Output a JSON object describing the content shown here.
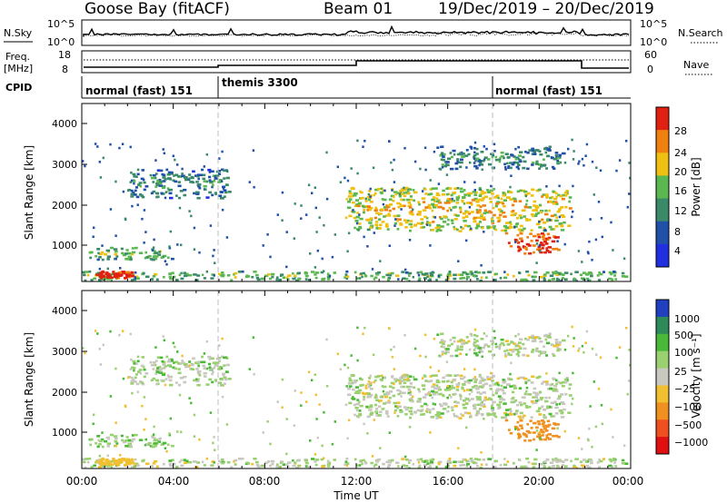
{
  "header": {
    "station": "Goose Bay (fitACF)",
    "beam": "Beam 01",
    "dates": "19/Dec/2019 – 20/Dec/2019"
  },
  "summary_panels": {
    "nsky_label": "N.Sky",
    "nsky_ticks": [
      "10^5",
      "10^0"
    ],
    "nsearch_label": "N.Search",
    "nsearch_ticks": [
      "10^5",
      "10^0"
    ],
    "freq_label_line1": "Freq.",
    "freq_label_line2": "[MHz]",
    "freq_ticks": [
      "18",
      "8"
    ],
    "nave_label": "Nave",
    "nave_ticks": [
      "60",
      "0"
    ],
    "cpid_label": "CPID",
    "cpid_modes": [
      {
        "name": "normal (fast) 151",
        "start_hour": 0
      },
      {
        "name": "themis 3300",
        "start_hour": 6
      },
      {
        "name": "normal (fast) 151",
        "start_hour": 18
      }
    ]
  },
  "power_panel": {
    "ylabel": "Slant Range [km]",
    "yticks": [
      "4000",
      "3000",
      "2000",
      "1000"
    ],
    "colorbar_label": "Power [dB]",
    "colorbar_ticks": [
      "28",
      "24",
      "20",
      "16",
      "12",
      "8",
      "4"
    ],
    "colors": [
      "#2030e0",
      "#2050a8",
      "#3a8a6a",
      "#5bb850",
      "#f0c010",
      "#f08010",
      "#e02010"
    ]
  },
  "velocity_panel": {
    "ylabel": "Slant Range [km]",
    "yticks": [
      "4000",
      "3000",
      "2000",
      "1000"
    ],
    "colorbar_label": "Velocity [m s⁻¹]",
    "colorbar_ticks": [
      "1000",
      "500",
      "100",
      "25",
      "−25",
      "−100",
      "−500",
      "−1000"
    ],
    "colors": [
      "#2040c0",
      "#2f8a5a",
      "#4ab838",
      "#9ad070",
      "#c8c8c0",
      "#f0c030",
      "#f09020",
      "#f05020",
      "#e01010"
    ]
  },
  "x_axis": {
    "label": "Time UT",
    "ticks": [
      "00:00",
      "04:00",
      "08:00",
      "12:00",
      "16:00",
      "20:00",
      "00:00"
    ]
  },
  "chart_data": {
    "type": "heatmap",
    "x_range_hours": [
      0,
      24
    ],
    "y_range_km": [
      180,
      4500
    ],
    "mode_boundaries_hours": [
      6,
      18
    ],
    "echo_regions": [
      {
        "name": "ground scatter band",
        "t": [
          0,
          24
        ],
        "r": [
          200,
          420
        ],
        "power_db": 10,
        "velocity_ms": 0
      },
      {
        "name": "early morning bright patch",
        "t": [
          0.6,
          2.2
        ],
        "r": [
          250,
          420
        ],
        "power_db": 24,
        "velocity_ms": -60
      },
      {
        "name": "morning band 1",
        "t": [
          0.3,
          4.0
        ],
        "r": [
          700,
          1000
        ],
        "power_db": 10,
        "velocity_ms": 15
      },
      {
        "name": "morning band 2",
        "t": [
          2.0,
          6.4
        ],
        "r": [
          2200,
          2900
        ],
        "power_db": 6,
        "velocity_ms": 5
      },
      {
        "name": "midday F-region band",
        "t": [
          11.5,
          21.3
        ],
        "r": [
          1400,
          2450
        ],
        "power_db": 14,
        "velocity_ms": 0
      },
      {
        "name": "evening bright patch",
        "t": [
          18.5,
          20.8
        ],
        "r": [
          850,
          1350
        ],
        "power_db": 22,
        "velocity_ms": -140
      },
      {
        "name": "late afternoon far band",
        "t": [
          15.5,
          21.0
        ],
        "r": [
          2900,
          3450
        ],
        "power_db": 6,
        "velocity_ms": 0
      }
    ]
  }
}
